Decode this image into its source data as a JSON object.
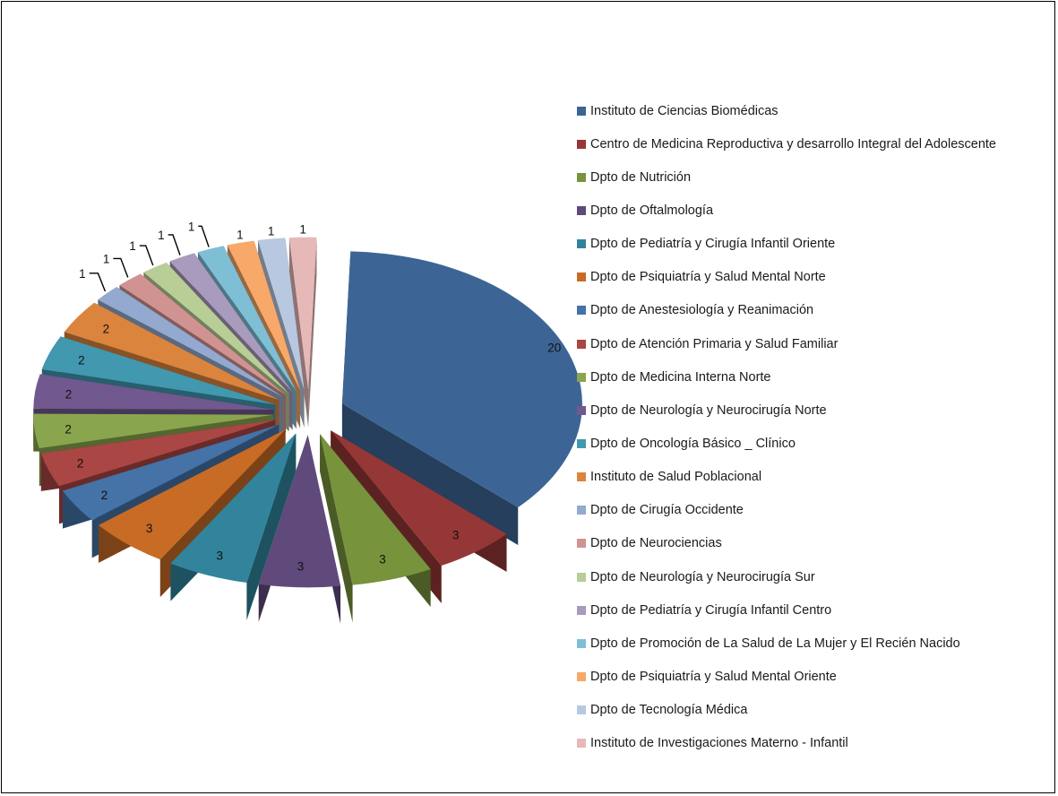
{
  "chart_data": {
    "type": "pie",
    "categories": [
      "Instituto de Ciencias Biomédicas",
      "Centro de Medicina Reproductiva y desarrollo Integral del Adolescente",
      "Dpto de Nutrición",
      "Dpto de Oftalmología",
      "Dpto de Pediatría y Cirugía Infantil Oriente",
      "Dpto de Psiquiatría y Salud Mental Norte",
      "Dpto de Anestesiología y Reanimación",
      "Dpto de Atención Primaria y Salud Familiar",
      "Dpto de Medicina Interna Norte",
      "Dpto de Neurología y Neurocirugía Norte",
      "Dpto de Oncología Básico _ Clínico",
      "Instituto de Salud Poblacional",
      "Dpto de Cirugía Occidente",
      "Dpto de Neurociencias",
      "Dpto de Neurología y Neurocirugía Sur",
      "Dpto de Pediatría y Cirugía Infantil Centro",
      "Dpto de Promoción de La Salud de La Mujer y El Recién Nacido",
      "Dpto de Psiquiatría y Salud Mental Oriente",
      "Dpto de Tecnología Médica",
      "Instituto de Investigaciones Materno - Infantil"
    ],
    "values": [
      20,
      3,
      3,
      3,
      3,
      3,
      2,
      2,
      2,
      2,
      2,
      2,
      1,
      1,
      1,
      1,
      1,
      1,
      1,
      1
    ],
    "colors": [
      "#3c6595",
      "#953736",
      "#77933c",
      "#604a7b",
      "#31849b",
      "#c86b25",
      "#4572a7",
      "#aa4643",
      "#89a54e",
      "#71588f",
      "#4198af",
      "#db843d",
      "#93a9cf",
      "#d19392",
      "#b9cd96",
      "#a99bbd",
      "#7ebfd6",
      "#f8a868",
      "#b8c8e0",
      "#e6b9b8"
    ],
    "legend_position": "right",
    "exploded": true,
    "three_d": true
  }
}
